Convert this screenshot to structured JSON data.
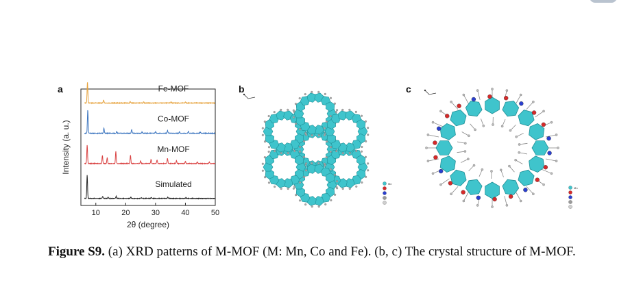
{
  "panels": {
    "a": "a",
    "b": "b",
    "c": "c"
  },
  "chart_data": {
    "type": "line",
    "xlabel": "2θ (degree)",
    "ylabel": "Intensity (a. u.)",
    "xlim": [
      5,
      50
    ],
    "xticks": [
      10,
      20,
      30,
      40,
      50
    ],
    "series": [
      {
        "name": "Fe-MOF",
        "color": "#e6a23c",
        "baseline": 0.88,
        "peaks": [
          [
            7.2,
            0.9
          ],
          [
            12.6,
            0.12
          ],
          [
            21.5,
            0.06
          ],
          [
            26,
            0.04
          ],
          [
            35.2,
            0.05
          ],
          [
            40,
            0.04
          ]
        ]
      },
      {
        "name": "Co-MOF",
        "color": "#3d76c0",
        "baseline": 0.62,
        "peaks": [
          [
            7.3,
            1.0
          ],
          [
            12.7,
            0.22
          ],
          [
            17,
            0.07
          ],
          [
            22,
            0.16
          ],
          [
            25.5,
            0.06
          ],
          [
            30,
            0.07
          ],
          [
            34,
            0.12
          ],
          [
            38,
            0.06
          ],
          [
            41,
            0.08
          ],
          [
            45,
            0.05
          ]
        ]
      },
      {
        "name": "Mn-MOF",
        "color": "#d94141",
        "baseline": 0.36,
        "peaks": [
          [
            7.1,
            0.8
          ],
          [
            12.2,
            0.35
          ],
          [
            13.8,
            0.25
          ],
          [
            16.7,
            0.52
          ],
          [
            21.6,
            0.35
          ],
          [
            25,
            0.12
          ],
          [
            28.5,
            0.18
          ],
          [
            30.5,
            0.15
          ],
          [
            34,
            0.22
          ],
          [
            37,
            0.12
          ],
          [
            40,
            0.1
          ],
          [
            44,
            0.08
          ],
          [
            48,
            0.07
          ]
        ]
      },
      {
        "name": "Simulated",
        "color": "#222222",
        "baseline": 0.06,
        "peaks": [
          [
            7.1,
            1.0
          ],
          [
            12.3,
            0.08
          ],
          [
            14.1,
            0.05
          ],
          [
            16.8,
            0.1
          ],
          [
            21.7,
            0.06
          ],
          [
            25.2,
            0.03
          ],
          [
            28.6,
            0.04
          ],
          [
            34.1,
            0.05
          ],
          [
            40.2,
            0.03
          ]
        ]
      }
    ]
  },
  "figures": {
    "b": {
      "legend": [
        "Mn"
      ]
    },
    "c": {
      "legend": [
        "Mn"
      ]
    }
  },
  "colors": {
    "polyhedra": "#3fc4cc",
    "oxygen": "#d62a2a",
    "nitrogen": "#2a3fcf",
    "carbon": "#9a9a9a"
  },
  "caption": {
    "label": "Figure S9.",
    "text": "(a) XRD patterns of M-MOF (M: Mn, Co and Fe). (b, c) The crystal structure of M-MOF."
  }
}
